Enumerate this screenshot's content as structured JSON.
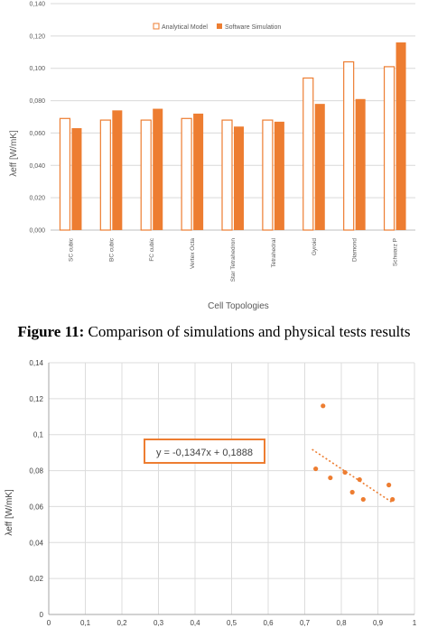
{
  "caption": {
    "label": "Figure 11:",
    "text": " Comparison of simulations and physical tests results"
  },
  "colors": {
    "accent": "#ED7D31",
    "grid": "#D9D9D9",
    "axis_text": "#595959"
  },
  "chart_data": [
    {
      "type": "bar",
      "xlabel": "Cell Topologies",
      "ylabel": "λeff [W/mK]",
      "ylim": [
        0,
        0.14
      ],
      "yticks": [
        "0,000",
        "0,020",
        "0,040",
        "0,060",
        "0,080",
        "0,100",
        "0,120",
        "0,140"
      ],
      "grid": true,
      "legend_position": "top-right",
      "categories": [
        "SC cubic",
        "BC cubic",
        "FC cubic",
        "Vertex Octa",
        "Star Tetrahedron",
        "Tetrahedral",
        "Gyroid",
        "Diamond",
        "Schwarz P"
      ],
      "series": [
        {
          "name": "Analytical Model",
          "style": "outline",
          "values": [
            0.069,
            0.068,
            0.068,
            0.069,
            0.068,
            0.068,
            0.094,
            0.104,
            0.101
          ]
        },
        {
          "name": "Software Simulation",
          "style": "filled",
          "values": [
            0.063,
            0.074,
            0.075,
            0.072,
            0.064,
            0.067,
            0.078,
            0.081,
            0.116
          ]
        }
      ]
    },
    {
      "type": "scatter",
      "ylabel": "λeff [W/mK]",
      "xlim": [
        0,
        1
      ],
      "ylim": [
        0,
        0.14
      ],
      "xticks": [
        "0",
        "0,1",
        "0,2",
        "0,3",
        "0,4",
        "0,5",
        "0,6",
        "0,7",
        "0,8",
        "0,9",
        "1"
      ],
      "yticks": [
        "0",
        "0,02",
        "0,04",
        "0,06",
        "0,08",
        "0,1",
        "0,12",
        "0,14"
      ],
      "grid": true,
      "points": [
        {
          "x": 0.73,
          "y": 0.081
        },
        {
          "x": 0.75,
          "y": 0.116
        },
        {
          "x": 0.77,
          "y": 0.076
        },
        {
          "x": 0.81,
          "y": 0.079
        },
        {
          "x": 0.83,
          "y": 0.068
        },
        {
          "x": 0.85,
          "y": 0.075
        },
        {
          "x": 0.86,
          "y": 0.064
        },
        {
          "x": 0.93,
          "y": 0.072
        },
        {
          "x": 0.94,
          "y": 0.064
        }
      ],
      "trendline": {
        "slope": -0.1347,
        "intercept": 0.1888,
        "x_range": [
          0.72,
          0.94
        ],
        "equation": "y = -0,1347x + 0,1888"
      }
    }
  ]
}
